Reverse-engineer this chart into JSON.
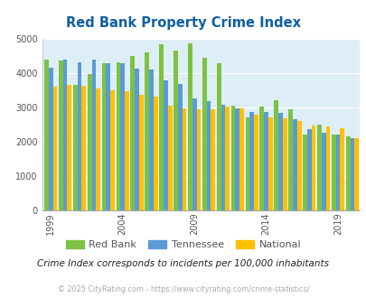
{
  "title": "Red Bank Property Crime Index",
  "years": [
    1999,
    2000,
    2001,
    2002,
    2003,
    2004,
    2005,
    2006,
    2007,
    2008,
    2009,
    2010,
    2011,
    2012,
    2013,
    2014,
    2015,
    2016,
    2017,
    2018,
    2019,
    2020
  ],
  "red_bank": [
    4380,
    4370,
    3660,
    3970,
    4290,
    4300,
    4500,
    4600,
    4850,
    4650,
    4870,
    4450,
    4290,
    3050,
    2700,
    3020,
    3200,
    2950,
    2210,
    2500,
    2210,
    2150
  ],
  "tennessee": [
    4150,
    4400,
    4310,
    4380,
    4290,
    4280,
    4120,
    4100,
    3780,
    3680,
    3250,
    3170,
    3070,
    2960,
    2850,
    2870,
    2830,
    2660,
    2350,
    2250,
    2200,
    2100
  ],
  "national": [
    3600,
    3650,
    3620,
    3550,
    3490,
    3460,
    3360,
    3310,
    3060,
    2980,
    2940,
    2940,
    3010,
    2970,
    2780,
    2710,
    2670,
    2600,
    2470,
    2440,
    2380,
    2110
  ],
  "bar_color_rb": "#7dc242",
  "bar_color_tn": "#5b9bd5",
  "bar_color_na": "#ffc000",
  "bg_color": "#ddeef6",
  "title_color": "#1060a0",
  "text_color": "#555555",
  "grid_color": "#ffffff",
  "xlabel_ticks": [
    1999,
    2004,
    2009,
    2014,
    2019
  ],
  "ylim": [
    0,
    5000
  ],
  "yticks": [
    0,
    1000,
    2000,
    3000,
    4000,
    5000
  ],
  "subtitle": "Crime Index corresponds to incidents per 100,000 inhabitants",
  "footer": "© 2025 CityRating.com - https://www.cityrating.com/crime-statistics/",
  "legend_labels": [
    "Red Bank",
    "Tennessee",
    "National"
  ]
}
